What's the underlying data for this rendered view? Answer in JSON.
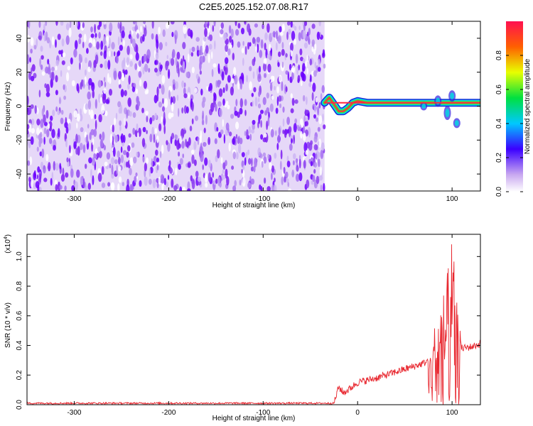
{
  "title": "C2E5.2025.152.07.08.R17",
  "chart_data": [
    {
      "type": "heatmap",
      "name": "spectrogram",
      "xlabel": "Height of straight line (km)",
      "ylabel": "Frequency (Hz)",
      "xlim": [
        -350,
        130
      ],
      "ylim": [
        -50,
        50
      ],
      "xticks": [
        "-300",
        "-200",
        "-100",
        "0",
        "100"
      ],
      "yticks": [
        "-40",
        "-20",
        "0",
        "20",
        "40"
      ],
      "noise_region_x": [
        -350,
        -35
      ],
      "signal_region_x": [
        -35,
        130
      ],
      "signal_trace": {
        "x": [
          -35,
          -30,
          -25,
          -20,
          -15,
          -10,
          -5,
          0,
          10,
          20,
          30,
          40,
          50,
          60,
          70,
          80,
          90,
          100,
          110,
          120,
          130
        ],
        "y": [
          2,
          5,
          1,
          -3,
          -3,
          -1,
          2,
          3,
          2,
          2,
          2,
          2,
          2,
          2,
          2,
          2,
          2,
          2,
          2,
          2,
          2
        ]
      },
      "colorbar": {
        "label": "Normalized spectral amplitude",
        "range": [
          0.0,
          1.0
        ],
        "ticks": [
          "0.0",
          "0.2",
          "0.4",
          "0.6",
          "0.8"
        ]
      }
    },
    {
      "type": "line",
      "name": "snr",
      "xlabel": "Height of straight line (km)",
      "ylabel": "SNR (10 * v/v)",
      "scale_label": "(x10",
      "scale_exp": "4",
      "scale_close": ")",
      "xlim": [
        -350,
        130
      ],
      "ylim": [
        0.0,
        1.15
      ],
      "xticks": [
        "-300",
        "-200",
        "-100",
        "0",
        "100"
      ],
      "yticks": [
        "0.0",
        "0.2",
        "0.4",
        "0.6",
        "0.8",
        "1.0"
      ],
      "line_color": "#e8262e",
      "series_shape": {
        "x": [
          -350,
          -25,
          -20,
          -15,
          -10,
          0,
          20,
          40,
          60,
          70,
          75,
          80,
          85,
          90,
          95,
          100,
          105,
          110,
          120,
          130
        ],
        "y": [
          0.01,
          0.01,
          0.12,
          0.08,
          0.1,
          0.15,
          0.18,
          0.22,
          0.26,
          0.28,
          0.3,
          0.5,
          0.65,
          0.75,
          0.9,
          1.15,
          0.7,
          0.38,
          0.39,
          0.41
        ]
      }
    }
  ]
}
